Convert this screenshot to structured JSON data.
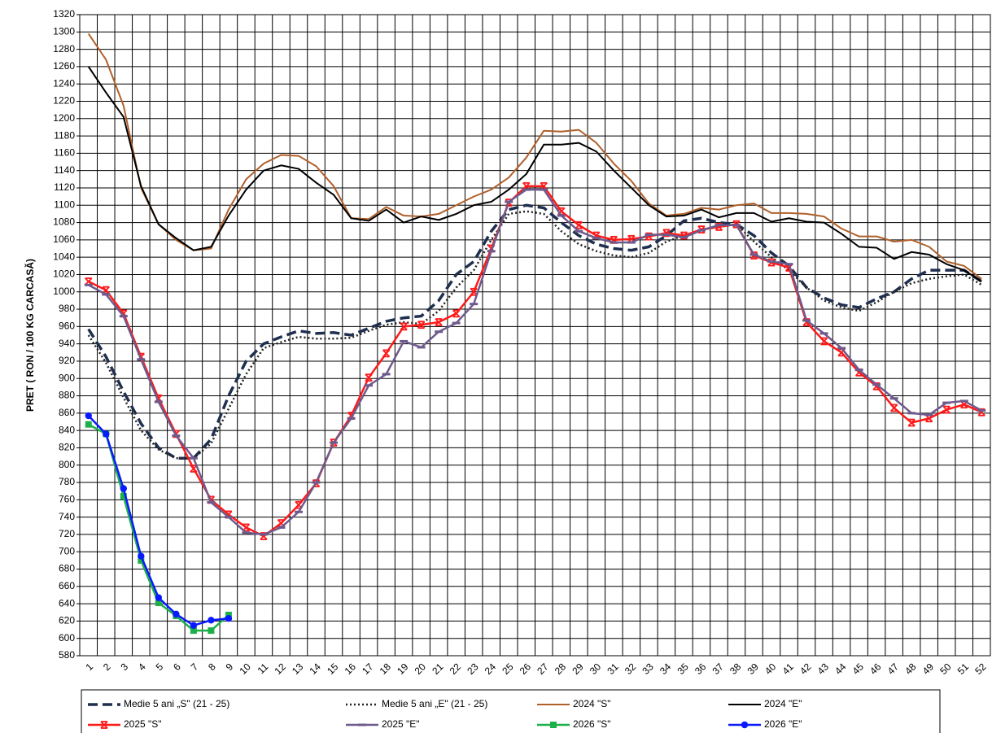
{
  "chart_data": {
    "type": "line",
    "y_label": "PRET ( RON / 100 KG CARCASĂ)",
    "categories": [
      "1",
      "2",
      "3",
      "4",
      "5",
      "6",
      "7",
      "8",
      "9",
      "10",
      "11",
      "12",
      "13",
      "14",
      "15",
      "16",
      "17",
      "18",
      "19",
      "20",
      "21",
      "22",
      "23",
      "24",
      "25",
      "26",
      "27",
      "28",
      "29",
      "30",
      "31",
      "32",
      "33",
      "34",
      "35",
      "36",
      "37",
      "38",
      "39",
      "40",
      "41",
      "42",
      "43",
      "44",
      "45",
      "46",
      "47",
      "48",
      "49",
      "50",
      "51",
      "52"
    ],
    "ylim": [
      580,
      1320
    ],
    "yticks": [
      580,
      600,
      620,
      640,
      660,
      680,
      700,
      720,
      740,
      760,
      780,
      800,
      820,
      840,
      860,
      880,
      900,
      920,
      940,
      960,
      980,
      1000,
      1020,
      1040,
      1060,
      1080,
      1100,
      1120,
      1140,
      1160,
      1180,
      1200,
      1220,
      1240,
      1260,
      1280,
      1300,
      1320
    ],
    "grid": true,
    "legend": "bottom",
    "series": [
      {
        "name": "Medie 5 ani „S\" (21 - 25)",
        "color": "#1f2f4f",
        "dash": "dashed",
        "values": [
          957,
          925,
          885,
          848,
          820,
          808,
          808,
          830,
          880,
          920,
          940,
          948,
          955,
          952,
          953,
          950,
          958,
          966,
          970,
          972,
          990,
          1020,
          1035,
          1070,
          1095,
          1100,
          1097,
          1080,
          1065,
          1055,
          1050,
          1048,
          1052,
          1065,
          1082,
          1085,
          1080,
          1078,
          1065,
          1045,
          1030,
          1005,
          993,
          985,
          982,
          992,
          1000,
          1015,
          1025,
          1025,
          1025,
          1012
        ]
      },
      {
        "name": "Medie 5 ani „E\" (21 - 25)",
        "color": "#222222",
        "dash": "dotted",
        "values": [
          950,
          918,
          878,
          840,
          818,
          808,
          808,
          825,
          865,
          905,
          935,
          942,
          948,
          946,
          946,
          947,
          955,
          962,
          965,
          963,
          978,
          1005,
          1025,
          1060,
          1090,
          1093,
          1090,
          1070,
          1055,
          1047,
          1042,
          1040,
          1045,
          1058,
          1065,
          1072,
          1075,
          1078,
          1058,
          1040,
          1025,
          1005,
          990,
          982,
          978,
          988,
          1000,
          1010,
          1015,
          1018,
          1020,
          1008
        ]
      },
      {
        "name": "2024 \"S\"",
        "color": "#b0602a",
        "values": [
          1298,
          1268,
          1215,
          1120,
          1078,
          1060,
          1048,
          1050,
          1095,
          1130,
          1148,
          1158,
          1157,
          1145,
          1122,
          1085,
          1084,
          1098,
          1088,
          1087,
          1090,
          1100,
          1110,
          1118,
          1132,
          1155,
          1186,
          1185,
          1187,
          1172,
          1148,
          1128,
          1102,
          1088,
          1090,
          1097,
          1095,
          1100,
          1102,
          1091,
          1091,
          1090,
          1087,
          1073,
          1064,
          1064,
          1058,
          1060,
          1052,
          1035,
          1030,
          1015
        ]
      },
      {
        "name": "2024 \"E\"",
        "color": "#000000",
        "values": [
          1260,
          1230,
          1202,
          1122,
          1078,
          1062,
          1048,
          1052,
          1088,
          1118,
          1140,
          1146,
          1142,
          1126,
          1112,
          1085,
          1082,
          1095,
          1080,
          1087,
          1083,
          1090,
          1100,
          1104,
          1118,
          1136,
          1170,
          1170,
          1172,
          1162,
          1140,
          1120,
          1100,
          1087,
          1088,
          1095,
          1086,
          1091,
          1091,
          1081,
          1085,
          1081,
          1080,
          1067,
          1052,
          1051,
          1038,
          1046,
          1043,
          1032,
          1025,
          1012
        ]
      },
      {
        "name": "2025 \"S\"",
        "color": "#ff1a1a",
        "marker": "x",
        "values": [
          1012,
          1002,
          975,
          925,
          877,
          836,
          796,
          760,
          743,
          728,
          718,
          733,
          754,
          779,
          826,
          857,
          901,
          929,
          960,
          962,
          965,
          975,
          1000,
          1050,
          1103,
          1122,
          1122,
          1093,
          1077,
          1065,
          1060,
          1061,
          1064,
          1068,
          1065,
          1072,
          1075,
          1078,
          1042,
          1034,
          1028,
          965,
          943,
          930,
          907,
          891,
          866,
          849,
          854,
          864,
          870,
          861
        ]
      },
      {
        "name": "2025 \"E\"",
        "color": "#6e5a8c",
        "marker": "dash",
        "values": [
          1008,
          997,
          972,
          922,
          873,
          834,
          808,
          757,
          740,
          722,
          720,
          728,
          746,
          780,
          826,
          854,
          892,
          905,
          943,
          936,
          954,
          964,
          986,
          1047,
          1104,
          1118,
          1118,
          1088,
          1070,
          1062,
          1057,
          1057,
          1066,
          1066,
          1063,
          1071,
          1077,
          1077,
          1043,
          1035,
          1032,
          967,
          952,
          935,
          910,
          893,
          877,
          860,
          858,
          872,
          874,
          863
        ]
      },
      {
        "name": "2026 \"S\"",
        "color": "#1db04a",
        "marker": "square",
        "values": [
          847,
          836,
          764,
          690,
          641,
          626,
          609,
          609,
          627,
          null,
          null,
          null,
          null,
          null,
          null,
          null,
          null,
          null,
          null,
          null,
          null,
          null,
          null,
          null,
          null,
          null,
          null,
          null,
          null,
          null,
          null,
          null,
          null,
          null,
          null,
          null,
          null,
          null,
          null,
          null,
          null,
          null,
          null,
          null,
          null,
          null,
          null,
          null,
          null,
          null,
          null,
          null
        ]
      },
      {
        "name": "2026 \"E\"",
        "color": "#0a1aff",
        "marker": "circle",
        "values": [
          857,
          836,
          773,
          695,
          647,
          628,
          615,
          621,
          623,
          null,
          null,
          null,
          null,
          null,
          null,
          null,
          null,
          null,
          null,
          null,
          null,
          null,
          null,
          null,
          null,
          null,
          null,
          null,
          null,
          null,
          null,
          null,
          null,
          null,
          null,
          null,
          null,
          null,
          null,
          null,
          null,
          null,
          null,
          null,
          null,
          null,
          null,
          null,
          null,
          null,
          null,
          null
        ]
      }
    ]
  }
}
